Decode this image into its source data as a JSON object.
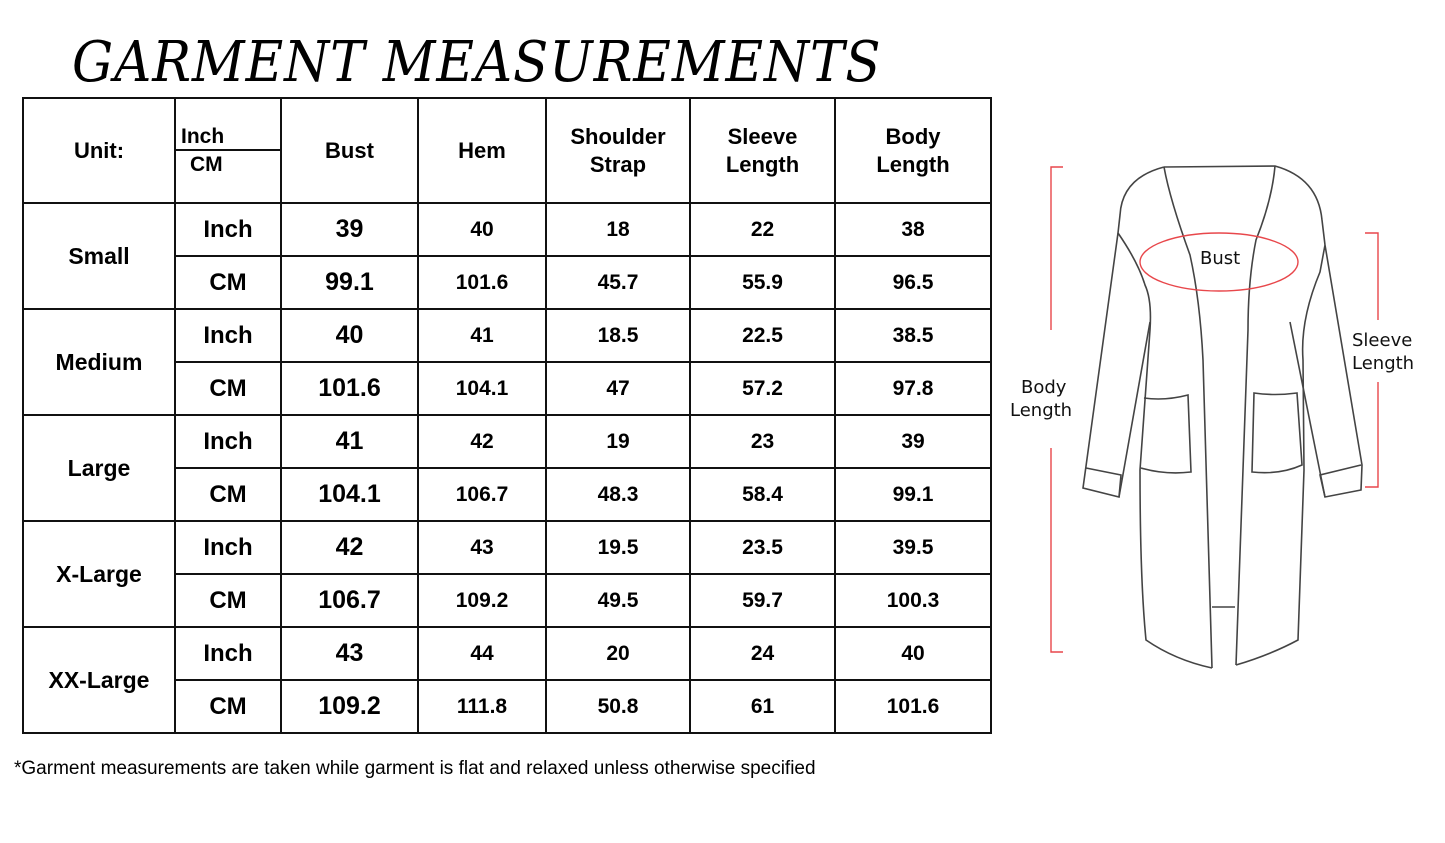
{
  "title": "GARMENT MEASUREMENTS",
  "table": {
    "unit_label": "Unit:",
    "unit_options": [
      "Inch",
      "CM"
    ],
    "columns": [
      "Bust",
      "Hem",
      "Shoulder Strap",
      "Sleeve Length",
      "Body Length"
    ],
    "rows": [
      {
        "size": "Small",
        "inch": [
          "39",
          "40",
          "18",
          "22",
          "38"
        ],
        "cm": [
          "99.1",
          "101.6",
          "45.7",
          "55.9",
          "96.5"
        ]
      },
      {
        "size": "Medium",
        "inch": [
          "40",
          "41",
          "18.5",
          "22.5",
          "38.5"
        ],
        "cm": [
          "101.6",
          "104.1",
          "47",
          "57.2",
          "97.8"
        ]
      },
      {
        "size": "Large",
        "inch": [
          "41",
          "42",
          "19",
          "23",
          "39"
        ],
        "cm": [
          "104.1",
          "106.7",
          "48.3",
          "58.4",
          "99.1"
        ]
      },
      {
        "size": "X-Large",
        "inch": [
          "42",
          "43",
          "19.5",
          "23.5",
          "39.5"
        ],
        "cm": [
          "106.7",
          "109.2",
          "49.5",
          "59.7",
          "100.3"
        ]
      },
      {
        "size": "XX-Large",
        "inch": [
          "43",
          "44",
          "20",
          "24",
          "40"
        ],
        "cm": [
          "109.2",
          "111.8",
          "50.8",
          "61",
          "101.6"
        ]
      }
    ],
    "row_unit_labels": {
      "inch": "Inch",
      "cm": "CM"
    }
  },
  "diagram": {
    "labels": {
      "bust": "Bust",
      "body_length": [
        "Body",
        "Length"
      ],
      "sleeve_length": [
        "Sleeve",
        "Length"
      ]
    },
    "marker_color": "#e8474b"
  },
  "footnote": "*Garment measurements are taken while garment is flat and relaxed unless otherwise specified"
}
